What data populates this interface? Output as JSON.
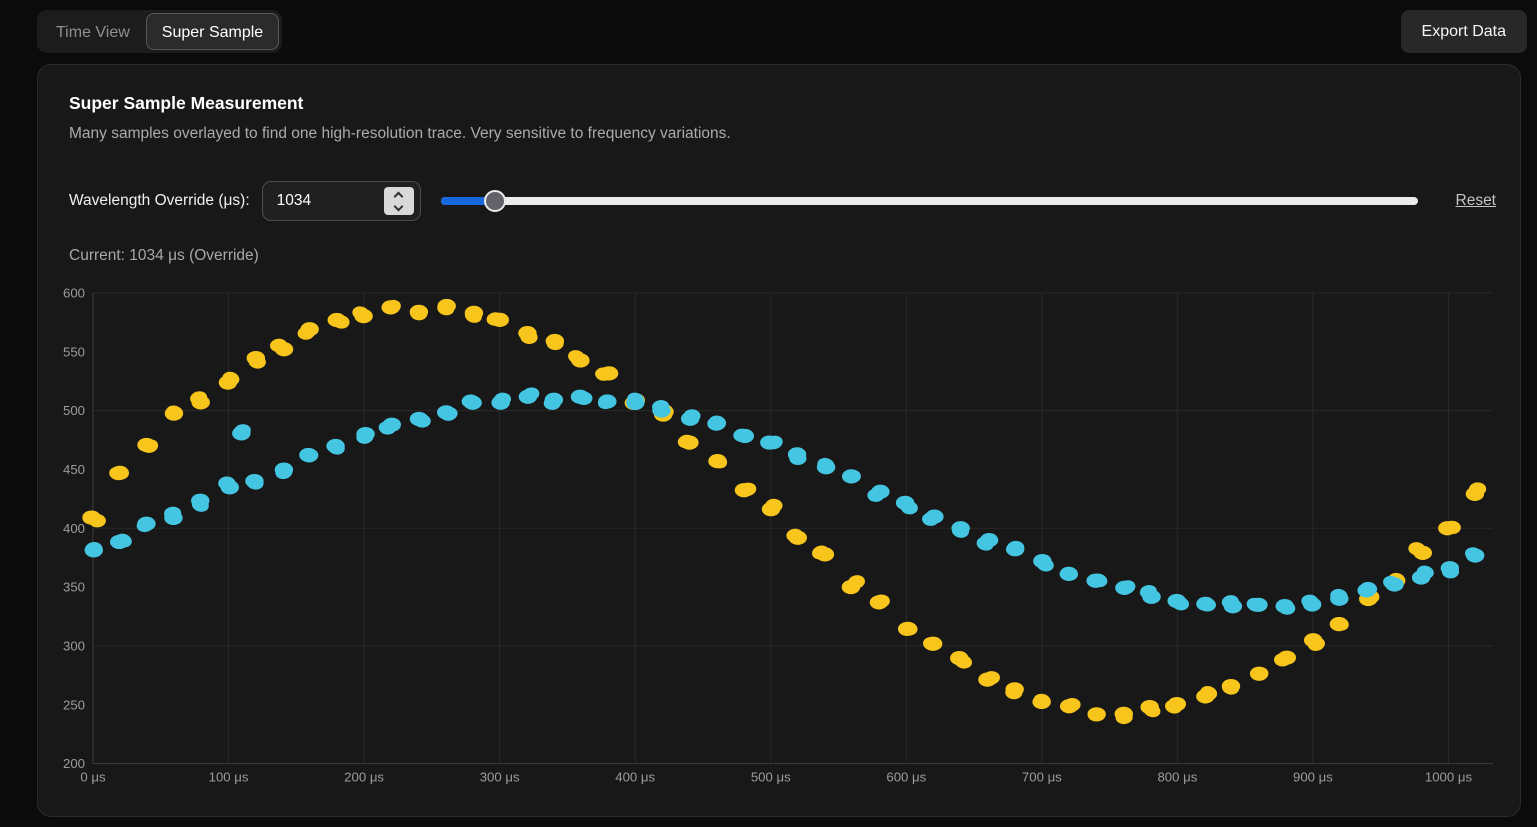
{
  "toolbar": {
    "tabs": [
      {
        "label": "Time View",
        "active": false
      },
      {
        "label": "Super Sample",
        "active": true
      }
    ],
    "export_button": "Export Data"
  },
  "panel": {
    "title": "Super Sample Measurement",
    "subtitle": "Many samples overlayed to find one high-resolution trace. Very sensitive to frequency variations.",
    "controls": {
      "wavelength_label": "Wavelength Override (μs):",
      "wavelength_value": "1034",
      "slider_fill_percent": 5.6,
      "reset_label": "Reset"
    },
    "current_text": "Current: 1034 μs (Override)"
  },
  "colors": {
    "page_bg": "#0b0b0b",
    "panel_bg": "#181818",
    "panel_border": "#2b2b2b",
    "accent_blue": "#1668dc",
    "series_yellow": "#f7c51c",
    "series_cyan": "#44c5e2",
    "grid": "#292929",
    "axis": "#3d3d3d",
    "tick_text": "#9c9c9c"
  },
  "chart_data": {
    "type": "scatter",
    "title": "",
    "xlabel": "",
    "ylabel": "",
    "x_tick_values": [
      0,
      100,
      200,
      300,
      400,
      500,
      600,
      700,
      800,
      900,
      1000
    ],
    "x_tick_labels": [
      "0 μs",
      "100 μs",
      "200 μs",
      "300 μs",
      "400 μs",
      "500 μs",
      "600 μs",
      "700 μs",
      "800 μs",
      "900 μs",
      "1000 μs"
    ],
    "y_tick_values": [
      200,
      250,
      300,
      350,
      400,
      450,
      500,
      550,
      600
    ],
    "grid_y_values": [
      200,
      300,
      400,
      500,
      600
    ],
    "xlim": [
      0,
      1035
    ],
    "ylim": [
      200,
      600
    ],
    "legend_position": "none",
    "point_interval_us": 20,
    "series": [
      {
        "name": "yellow-series",
        "color": "#f7c51c",
        "points": [
          [
            0,
            408
          ],
          [
            20,
            447
          ],
          [
            40,
            470
          ],
          [
            60,
            497
          ],
          [
            80,
            508
          ],
          [
            100,
            524
          ],
          [
            120,
            545
          ],
          [
            140,
            553
          ],
          [
            160,
            568
          ],
          [
            180,
            577
          ],
          [
            200,
            580
          ],
          [
            220,
            587
          ],
          [
            240,
            585
          ],
          [
            260,
            588
          ],
          [
            280,
            584
          ],
          [
            300,
            578
          ],
          [
            320,
            566
          ],
          [
            340,
            559
          ],
          [
            360,
            542
          ],
          [
            380,
            532
          ],
          [
            400,
            510
          ],
          [
            420,
            497
          ],
          [
            440,
            473
          ],
          [
            460,
            458
          ],
          [
            480,
            433
          ],
          [
            500,
            417
          ],
          [
            520,
            392
          ],
          [
            540,
            377
          ],
          [
            560,
            351
          ],
          [
            580,
            337
          ],
          [
            600,
            315
          ],
          [
            620,
            302
          ],
          [
            640,
            289
          ],
          [
            660,
            271
          ],
          [
            680,
            264
          ],
          [
            700,
            252
          ],
          [
            720,
            250
          ],
          [
            740,
            243
          ],
          [
            760,
            242
          ],
          [
            780,
            247
          ],
          [
            800,
            250
          ],
          [
            820,
            258
          ],
          [
            840,
            266
          ],
          [
            860,
            277
          ],
          [
            880,
            290
          ],
          [
            900,
            305
          ],
          [
            920,
            318
          ],
          [
            940,
            340
          ],
          [
            960,
            355
          ],
          [
            980,
            380
          ],
          [
            1000,
            399
          ],
          [
            1020,
            430
          ]
        ]
      },
      {
        "name": "cyan-series",
        "color": "#44c5e2",
        "points": [
          [
            0,
            381
          ],
          [
            20,
            389
          ],
          [
            40,
            403
          ],
          [
            60,
            410
          ],
          [
            80,
            423
          ],
          [
            100,
            436
          ],
          [
            110,
            480
          ],
          [
            120,
            441
          ],
          [
            140,
            450
          ],
          [
            160,
            462
          ],
          [
            180,
            470
          ],
          [
            200,
            480
          ],
          [
            220,
            487
          ],
          [
            240,
            493
          ],
          [
            260,
            499
          ],
          [
            280,
            506
          ],
          [
            300,
            508
          ],
          [
            320,
            511
          ],
          [
            340,
            510
          ],
          [
            360,
            511
          ],
          [
            380,
            509
          ],
          [
            400,
            506
          ],
          [
            420,
            500
          ],
          [
            440,
            492
          ],
          [
            460,
            488
          ],
          [
            480,
            478
          ],
          [
            500,
            472
          ],
          [
            520,
            463
          ],
          [
            540,
            452
          ],
          [
            560,
            443
          ],
          [
            580,
            430
          ],
          [
            600,
            421
          ],
          [
            620,
            410
          ],
          [
            640,
            400
          ],
          [
            660,
            390
          ],
          [
            680,
            381
          ],
          [
            700,
            371
          ],
          [
            720,
            362
          ],
          [
            740,
            356
          ],
          [
            760,
            349
          ],
          [
            780,
            343
          ],
          [
            800,
            339
          ],
          [
            820,
            336
          ],
          [
            840,
            334
          ],
          [
            860,
            334
          ],
          [
            880,
            335
          ],
          [
            900,
            336
          ],
          [
            920,
            341
          ],
          [
            940,
            346
          ],
          [
            960,
            352
          ],
          [
            980,
            359
          ],
          [
            1000,
            366
          ],
          [
            1020,
            377
          ]
        ]
      }
    ]
  }
}
